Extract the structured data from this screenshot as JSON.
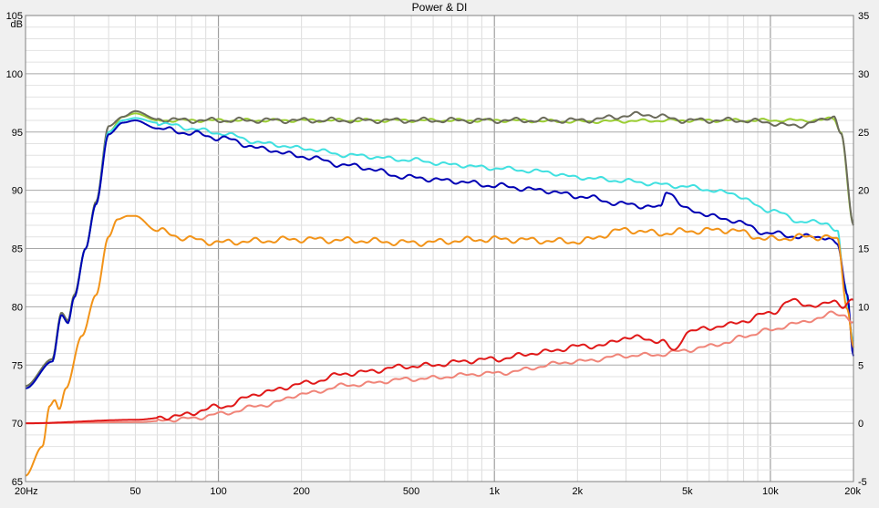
{
  "chart_data": {
    "type": "line",
    "title": "Power & DI",
    "x_scale": "log",
    "x_range": [
      20,
      20000
    ],
    "left_axis": {
      "unit": "dB",
      "range": [
        65,
        105
      ],
      "ticks": [
        65,
        70,
        75,
        80,
        85,
        90,
        95,
        100,
        105
      ]
    },
    "right_axis": {
      "range": [
        -5,
        35
      ],
      "ticks": [
        -5,
        0,
        5,
        10,
        15,
        20,
        25,
        30,
        35
      ]
    },
    "x_ticks": [
      {
        "value": 20,
        "label": "20Hz"
      },
      {
        "value": 50,
        "label": "50"
      },
      {
        "value": 100,
        "label": "100"
      },
      {
        "value": 200,
        "label": "200"
      },
      {
        "value": 500,
        "label": "500"
      },
      {
        "value": 1000,
        "label": "1k"
      },
      {
        "value": 2000,
        "label": "2k"
      },
      {
        "value": 5000,
        "label": "5k"
      },
      {
        "value": 10000,
        "label": "10k"
      },
      {
        "value": 20000,
        "label": "20k"
      }
    ],
    "grid": true,
    "legend": "none",
    "series": [
      {
        "color": "#9acd32",
        "axis": "left",
        "wiggle": 0.15,
        "points": [
          [
            20,
            73.2
          ],
          [
            25,
            75.5
          ],
          [
            27,
            79.5
          ],
          [
            28.5,
            78.8
          ],
          [
            30,
            81
          ],
          [
            33,
            85
          ],
          [
            36,
            89
          ],
          [
            40,
            95
          ],
          [
            45,
            96.3
          ],
          [
            50,
            96.6
          ],
          [
            60,
            96
          ],
          [
            80,
            96
          ],
          [
            100,
            96
          ],
          [
            200,
            96
          ],
          [
            500,
            96
          ],
          [
            1000,
            96
          ],
          [
            2000,
            95.9
          ],
          [
            5000,
            96
          ],
          [
            10000,
            96
          ],
          [
            15000,
            96
          ],
          [
            17000,
            96.2
          ],
          [
            18000,
            95
          ],
          [
            20000,
            87
          ]
        ]
      },
      {
        "color": "#6b6b5b",
        "axis": "left",
        "wiggle": 0.25,
        "points": [
          [
            20,
            73.2
          ],
          [
            25,
            75.5
          ],
          [
            27,
            79.5
          ],
          [
            28.5,
            78.8
          ],
          [
            30,
            81
          ],
          [
            33,
            85
          ],
          [
            36,
            89
          ],
          [
            40,
            95.5
          ],
          [
            45,
            96.3
          ],
          [
            50,
            96.8
          ],
          [
            60,
            96.1
          ],
          [
            80,
            96
          ],
          [
            100,
            96
          ],
          [
            200,
            96
          ],
          [
            500,
            96
          ],
          [
            1000,
            96
          ],
          [
            2000,
            96
          ],
          [
            3500,
            96.5
          ],
          [
            5000,
            96
          ],
          [
            8000,
            96
          ],
          [
            10000,
            95.8
          ],
          [
            12000,
            95.5
          ],
          [
            15000,
            95.9
          ],
          [
            17000,
            96.4
          ],
          [
            18000,
            95
          ],
          [
            20000,
            87
          ]
        ]
      },
      {
        "color": "#40e0e0",
        "axis": "left",
        "wiggle": 0.2,
        "points": [
          [
            20,
            73
          ],
          [
            25,
            75.3
          ],
          [
            27,
            79.3
          ],
          [
            28.5,
            78.6
          ],
          [
            30,
            80.8
          ],
          [
            33,
            85
          ],
          [
            36,
            88.8
          ],
          [
            40,
            95
          ],
          [
            45,
            96
          ],
          [
            50,
            96.2
          ],
          [
            60,
            95.8
          ],
          [
            80,
            95.3
          ],
          [
            100,
            94.9
          ],
          [
            150,
            94
          ],
          [
            200,
            93.6
          ],
          [
            300,
            93
          ],
          [
            500,
            92.6
          ],
          [
            700,
            92.2
          ],
          [
            1000,
            91.9
          ],
          [
            1500,
            91.6
          ],
          [
            2000,
            91.1
          ],
          [
            3000,
            90.8
          ],
          [
            4000,
            90.5
          ],
          [
            5000,
            90.3
          ],
          [
            7000,
            89.8
          ],
          [
            10000,
            88.3
          ],
          [
            13000,
            87.3
          ],
          [
            16000,
            87.2
          ],
          [
            17500,
            86.5
          ],
          [
            18500,
            82
          ],
          [
            20000,
            77
          ]
        ]
      },
      {
        "color": "#0000b4",
        "axis": "left",
        "wiggle": 0.25,
        "points": [
          [
            20,
            73
          ],
          [
            25,
            75.3
          ],
          [
            27,
            79.3
          ],
          [
            28.5,
            78.6
          ],
          [
            30,
            80.8
          ],
          [
            33,
            85
          ],
          [
            36,
            88.8
          ],
          [
            40,
            94.8
          ],
          [
            45,
            95.8
          ],
          [
            50,
            96
          ],
          [
            60,
            95.3
          ],
          [
            80,
            94.9
          ],
          [
            100,
            94.5
          ],
          [
            150,
            93.5
          ],
          [
            200,
            92.9
          ],
          [
            300,
            92.1
          ],
          [
            500,
            91.1
          ],
          [
            700,
            90.8
          ],
          [
            1000,
            90.4
          ],
          [
            1500,
            90
          ],
          [
            2000,
            89.5
          ],
          [
            3000,
            88.8
          ],
          [
            4000,
            88.5
          ],
          [
            4200,
            90
          ],
          [
            5000,
            88.3
          ],
          [
            7000,
            87.5
          ],
          [
            10000,
            86.3
          ],
          [
            13000,
            86
          ],
          [
            16000,
            86
          ],
          [
            17500,
            85.3
          ],
          [
            19000,
            81
          ],
          [
            20000,
            76
          ]
        ]
      },
      {
        "color": "#f29318",
        "axis": "right",
        "wiggle": 0.3,
        "points": [
          [
            20,
            -4.5
          ],
          [
            23,
            -2
          ],
          [
            24.5,
            1.5
          ],
          [
            25.5,
            2
          ],
          [
            26.5,
            1.2
          ],
          [
            28,
            3
          ],
          [
            32,
            7.5
          ],
          [
            36,
            11
          ],
          [
            40,
            16
          ],
          [
            43,
            17.5
          ],
          [
            47,
            17.8
          ],
          [
            50,
            17.8
          ],
          [
            60,
            16.5
          ],
          [
            80,
            15.8
          ],
          [
            100,
            15.5
          ],
          [
            120,
            15.6
          ],
          [
            200,
            15.8
          ],
          [
            300,
            15.7
          ],
          [
            500,
            15.5
          ],
          [
            1000,
            15.8
          ],
          [
            2000,
            15.6
          ],
          [
            3000,
            16.6
          ],
          [
            4000,
            16.3
          ],
          [
            5000,
            16.5
          ],
          [
            7000,
            16.6
          ],
          [
            10000,
            15.8
          ],
          [
            13000,
            16
          ],
          [
            16000,
            16
          ],
          [
            17500,
            15.7
          ],
          [
            19000,
            10
          ],
          [
            20000,
            6.5
          ]
        ]
      },
      {
        "color": "#f08478",
        "axis": "right",
        "wiggle": 0.2,
        "points": [
          [
            20,
            0
          ],
          [
            50,
            0.1
          ],
          [
            80,
            0.4
          ],
          [
            100,
            0.8
          ],
          [
            150,
            1.6
          ],
          [
            200,
            2.5
          ],
          [
            300,
            3.3
          ],
          [
            500,
            3.8
          ],
          [
            1000,
            4.3
          ],
          [
            2000,
            5.3
          ],
          [
            3000,
            5.8
          ],
          [
            4000,
            5.9
          ],
          [
            5000,
            6.3
          ],
          [
            7000,
            6.9
          ],
          [
            8000,
            7.5
          ],
          [
            10000,
            8
          ],
          [
            12000,
            8.5
          ],
          [
            15000,
            9
          ],
          [
            17000,
            9.5
          ],
          [
            18500,
            9.3
          ],
          [
            20000,
            8.6
          ]
        ]
      },
      {
        "color": "#e01818",
        "axis": "right",
        "wiggle": 0.25,
        "points": [
          [
            20,
            0
          ],
          [
            50,
            0.3
          ],
          [
            70,
            0.6
          ],
          [
            100,
            1.4
          ],
          [
            150,
            2.7
          ],
          [
            200,
            3.4
          ],
          [
            300,
            4.3
          ],
          [
            500,
            4.9
          ],
          [
            1000,
            5.5
          ],
          [
            1500,
            6.1
          ],
          [
            2000,
            6.6
          ],
          [
            2500,
            6.7
          ],
          [
            3000,
            7.4
          ],
          [
            4000,
            7.1
          ],
          [
            4500,
            6.2
          ],
          [
            5000,
            7.9
          ],
          [
            7000,
            8.4
          ],
          [
            8000,
            8.8
          ],
          [
            10000,
            9.5
          ],
          [
            12000,
            10.5
          ],
          [
            15000,
            10
          ],
          [
            17000,
            10.6
          ],
          [
            18500,
            10
          ],
          [
            20000,
            10.5
          ]
        ]
      }
    ]
  }
}
